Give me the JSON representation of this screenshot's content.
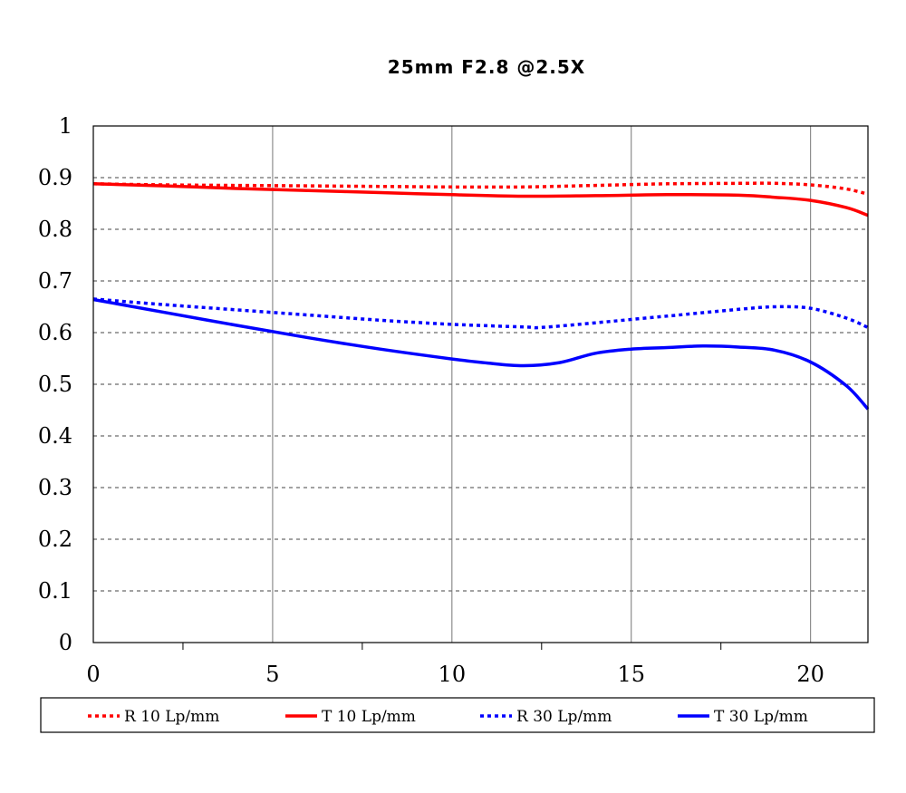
{
  "chart_data": {
    "type": "line",
    "title": "25mm F2.8  @2.5X",
    "xlabel": "",
    "ylabel": "",
    "xlim": [
      0,
      21.6
    ],
    "ylim": [
      0,
      1
    ],
    "x_ticks": [
      "0",
      "5",
      "10",
      "15",
      "20"
    ],
    "y_ticks": [
      "0",
      "0.1",
      "0.2",
      "0.3",
      "0.4",
      "0.5",
      "0.6",
      "0.7",
      "0.8",
      "0.9",
      "1"
    ],
    "grid": true,
    "legend_position": "bottom",
    "series": [
      {
        "name": "R 10 Lp/mm",
        "color": "#ff0000",
        "style": "dotted",
        "x": [
          0,
          2,
          4,
          6,
          8,
          10,
          12,
          14,
          16,
          18,
          19,
          20,
          21,
          21.6
        ],
        "y": [
          0.888,
          0.886,
          0.885,
          0.884,
          0.883,
          0.882,
          0.882,
          0.885,
          0.888,
          0.889,
          0.889,
          0.886,
          0.878,
          0.868
        ]
      },
      {
        "name": "T 10 Lp/mm",
        "color": "#ff0000",
        "style": "solid",
        "x": [
          0,
          2,
          4,
          6,
          8,
          10,
          12,
          14,
          16,
          18,
          19,
          20,
          21,
          21.6
        ],
        "y": [
          0.888,
          0.884,
          0.879,
          0.875,
          0.871,
          0.867,
          0.864,
          0.865,
          0.867,
          0.866,
          0.862,
          0.856,
          0.842,
          0.827
        ]
      },
      {
        "name": "R 30 Lp/mm",
        "color": "#0000ff",
        "style": "dotted",
        "x": [
          0,
          2,
          4,
          6,
          8,
          10,
          12,
          12.5,
          14,
          16,
          18,
          19,
          20,
          21,
          21.6
        ],
        "y": [
          0.665,
          0.654,
          0.644,
          0.634,
          0.624,
          0.616,
          0.611,
          0.61,
          0.619,
          0.632,
          0.645,
          0.65,
          0.647,
          0.628,
          0.61
        ]
      },
      {
        "name": "T 30 Lp/mm",
        "color": "#0000ff",
        "style": "solid",
        "x": [
          0,
          2,
          4,
          6,
          8,
          10,
          11,
          12,
          13,
          14,
          15,
          16,
          17,
          18,
          19,
          20,
          21,
          21.6
        ],
        "y": [
          0.664,
          0.639,
          0.614,
          0.59,
          0.568,
          0.549,
          0.541,
          0.536,
          0.542,
          0.56,
          0.568,
          0.571,
          0.574,
          0.572,
          0.566,
          0.543,
          0.497,
          0.452
        ]
      }
    ]
  }
}
